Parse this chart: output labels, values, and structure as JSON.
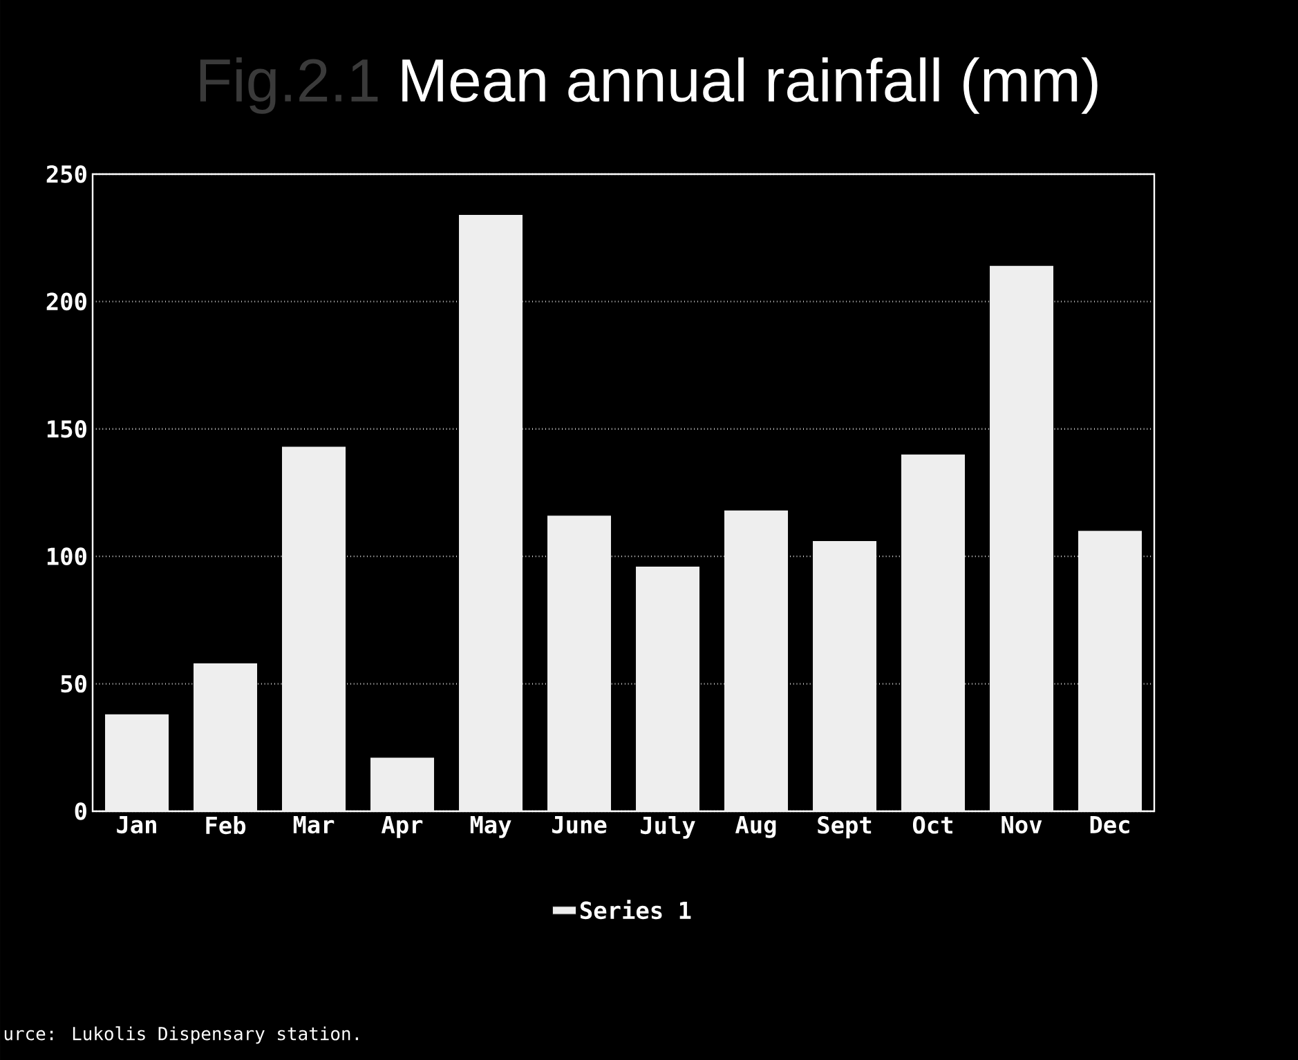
{
  "chart_data": {
    "type": "bar",
    "title": "Mean annual rainfall (mm)",
    "categories": [
      "Jan",
      "Feb",
      "Mar",
      "Apr",
      "May",
      "June",
      "July",
      "Aug",
      "Sept",
      "Oct",
      "Nov",
      "Dec"
    ],
    "series": [
      {
        "name": "Series 1",
        "color": "#eeeeee",
        "values": [
          38,
          58,
          143,
          21,
          234,
          116,
          96,
          118,
          106,
          140,
          214,
          110
        ]
      }
    ],
    "ylim": [
      0,
      250
    ],
    "yticks": [
      0,
      50,
      100,
      150,
      200,
      250
    ],
    "grid": "y",
    "legend": "bottom",
    "annotations": [
      "Fig.2.1",
      "urce: Lukolis Dispensary station."
    ]
  }
}
